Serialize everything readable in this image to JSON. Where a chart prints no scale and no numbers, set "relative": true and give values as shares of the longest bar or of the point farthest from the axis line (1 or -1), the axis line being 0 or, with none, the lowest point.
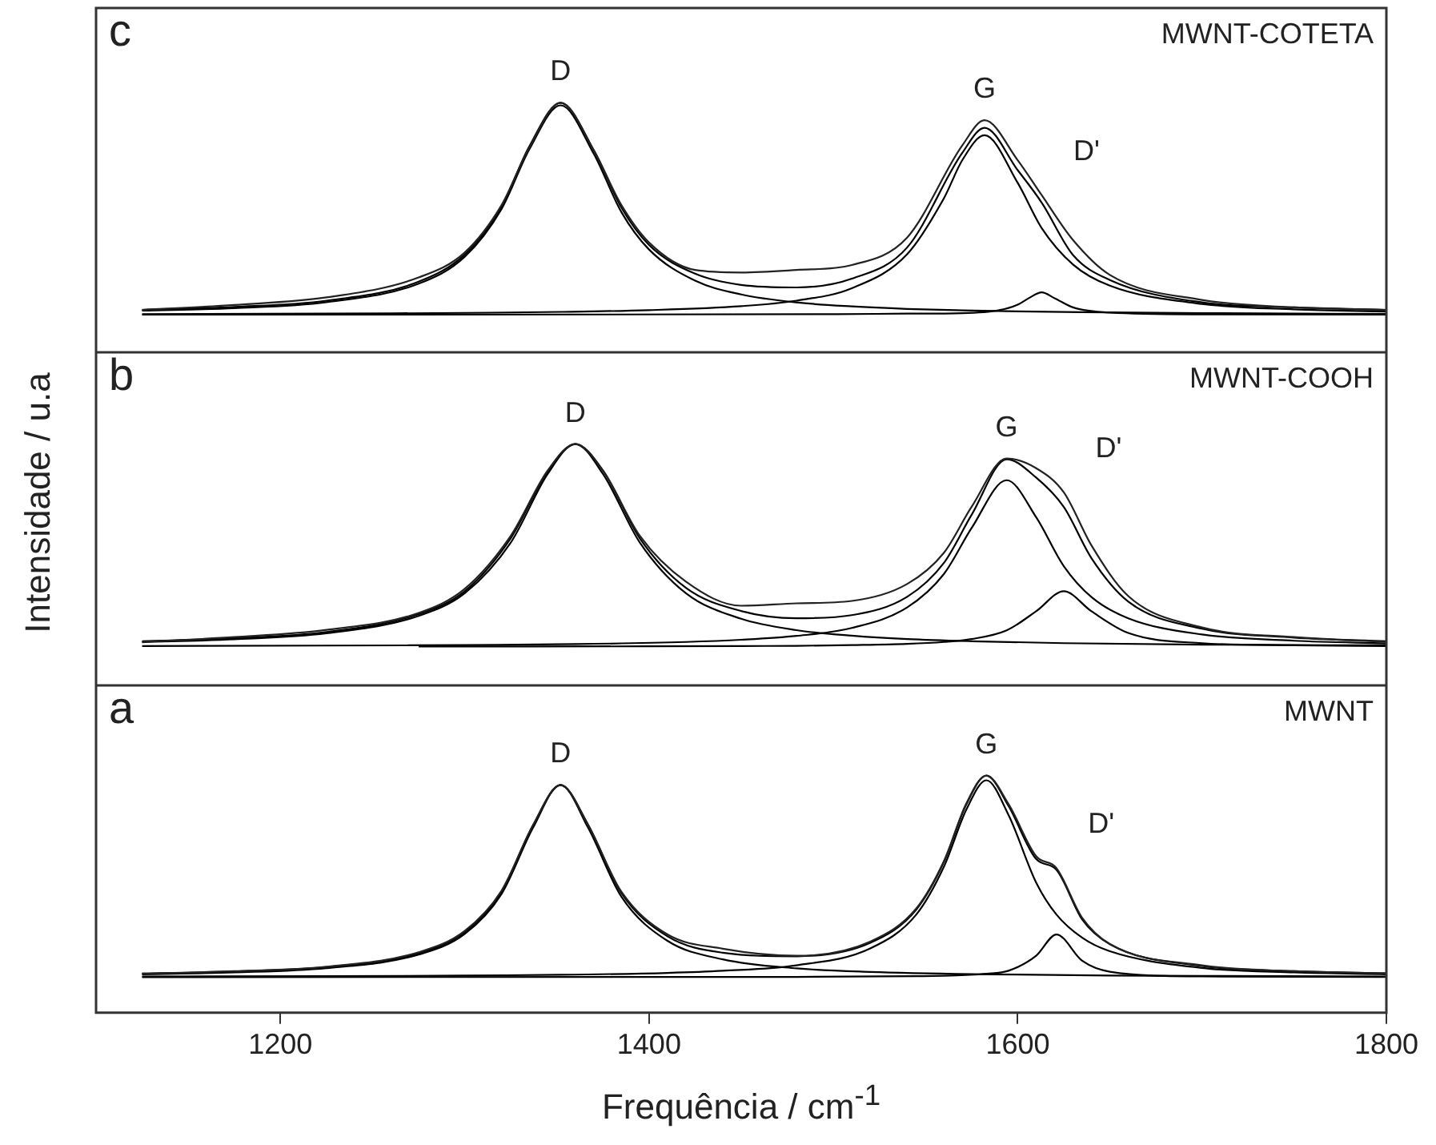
{
  "chart_data": [
    {
      "type": "line",
      "relative": true,
      "xlim": [
        1100,
        1800
      ],
      "tick_labels": false,
      "legend": false,
      "grid": false,
      "marker": "none",
      "annotations": [
        "c",
        "MWNT-COTETA",
        "D",
        "G",
        "D'"
      ],
      "x": [
        1125,
        1175,
        1225,
        1275,
        1300,
        1320,
        1335,
        1352,
        1370,
        1385,
        1400,
        1425,
        1450,
        1480,
        1510,
        1540,
        1570,
        1582,
        1600,
        1613,
        1630,
        1650,
        1700,
        1750,
        1800
      ],
      "series": [
        {
          "color": "#222222",
          "values": [
            0.17,
            0.19,
            0.22,
            0.3,
            0.4,
            0.59,
            0.82,
            1.0,
            0.81,
            0.59,
            0.44,
            0.33,
            0.32,
            0.33,
            0.35,
            0.46,
            0.83,
            0.93,
            0.77,
            0.63,
            0.45,
            0.31,
            0.21,
            0.18,
            0.17
          ]
        },
        {
          "color": "#000000",
          "values": [
            0.17,
            0.182,
            0.207,
            0.283,
            0.392,
            0.585,
            0.825,
            1.0,
            0.81,
            0.58,
            0.43,
            0.315,
            0.27,
            0.26,
            0.295,
            0.42,
            0.8,
            0.9,
            0.73,
            0.6,
            0.39,
            0.29,
            0.2,
            0.18,
            0.17
          ]
        },
        {
          "color": "#000000",
          "x": [
            1125,
            1175,
            1225,
            1275,
            1300,
            1320,
            1335,
            1352,
            1370,
            1385,
            1400,
            1425,
            1450,
            1480,
            1510,
            1540,
            1570,
            1600,
            1650,
            1700,
            1800
          ],
          "values": [
            0.167,
            0.177,
            0.201,
            0.275,
            0.383,
            0.575,
            0.813,
            0.99,
            0.796,
            0.562,
            0.412,
            0.287,
            0.232,
            0.2,
            0.184,
            0.174,
            0.168,
            0.164,
            0.16,
            0.157,
            0.154
          ]
        },
        {
          "color": "#000000",
          "x": [
            1125,
            1225,
            1300,
            1352,
            1400,
            1450,
            1480,
            1510,
            1540,
            1560,
            1570,
            1582,
            1600,
            1613,
            1630,
            1650,
            1700,
            1750,
            1800
          ],
          "values": [
            0.153,
            0.155,
            0.158,
            0.162,
            0.169,
            0.185,
            0.207,
            0.257,
            0.393,
            0.618,
            0.771,
            0.87,
            0.679,
            0.498,
            0.352,
            0.267,
            0.194,
            0.172,
            0.163
          ]
        },
        {
          "color": "#000000",
          "x": [
            1125,
            1500,
            1540,
            1570,
            1590,
            1600,
            1606,
            1613,
            1620,
            1630,
            1650,
            1700,
            1800
          ],
          "values": [
            0.151,
            0.153,
            0.155,
            0.157,
            0.169,
            0.191,
            0.217,
            0.24,
            0.217,
            0.18,
            0.159,
            0.152,
            0.151
          ]
        }
      ]
    },
    {
      "type": "line",
      "relative": true,
      "xlim": [
        1100,
        1800
      ],
      "tick_labels": false,
      "legend": false,
      "grid": false,
      "marker": "none",
      "ylabel": "Intensidade / u.a",
      "annotations": [
        "b",
        "MWNT-COOH",
        "D",
        "G",
        "D'"
      ],
      "x": [
        1125,
        1175,
        1225,
        1275,
        1300,
        1325,
        1345,
        1360,
        1375,
        1395,
        1420,
        1450,
        1480,
        1510,
        1540,
        1560,
        1575,
        1594,
        1610,
        1625,
        1640,
        1660,
        1700,
        1750,
        1800
      ],
      "series": [
        {
          "color": "#222222",
          "values": [
            0.18,
            0.2,
            0.23,
            0.3,
            0.4,
            0.62,
            0.89,
            1.0,
            0.89,
            0.62,
            0.43,
            0.33,
            0.34,
            0.35,
            0.42,
            0.55,
            0.74,
            0.94,
            0.9,
            0.8,
            0.58,
            0.37,
            0.24,
            0.2,
            0.18
          ]
        },
        {
          "color": "#000000",
          "values": [
            0.183,
            0.195,
            0.221,
            0.295,
            0.39,
            0.61,
            0.887,
            1.0,
            0.89,
            0.609,
            0.404,
            0.308,
            0.278,
            0.291,
            0.367,
            0.508,
            0.707,
            0.937,
            0.861,
            0.739,
            0.527,
            0.347,
            0.235,
            0.198,
            0.183
          ]
        },
        {
          "color": "#000000",
          "x": [
            1125,
            1175,
            1225,
            1275,
            1300,
            1325,
            1345,
            1360,
            1375,
            1395,
            1420,
            1450,
            1480,
            1510,
            1540,
            1575,
            1625,
            1700,
            1800
          ],
          "values": [
            0.179,
            0.191,
            0.216,
            0.288,
            0.382,
            0.592,
            0.876,
            1.0,
            0.876,
            0.592,
            0.382,
            0.276,
            0.229,
            0.206,
            0.192,
            0.183,
            0.175,
            0.169,
            0.166
          ]
        },
        {
          "color": "#000000",
          "x": [
            1125,
            1225,
            1300,
            1360,
            1420,
            1450,
            1480,
            1510,
            1540,
            1560,
            1575,
            1594,
            1610,
            1625,
            1640,
            1660,
            1700,
            1750,
            1800
          ],
          "values": [
            0.163,
            0.165,
            0.167,
            0.171,
            0.18,
            0.189,
            0.205,
            0.238,
            0.323,
            0.462,
            0.652,
            0.85,
            0.697,
            0.494,
            0.366,
            0.278,
            0.211,
            0.185,
            0.174
          ]
        },
        {
          "color": "#000000",
          "x": [
            1275,
            1400,
            1450,
            1480,
            1510,
            1540,
            1560,
            1575,
            1594,
            1610,
            1625,
            1640,
            1660,
            1700,
            1750,
            1800
          ],
          "values": [
            0.161,
            0.162,
            0.163,
            0.164,
            0.167,
            0.172,
            0.18,
            0.192,
            0.228,
            0.307,
            0.39,
            0.307,
            0.217,
            0.175,
            0.166,
            0.163
          ]
        }
      ]
    },
    {
      "type": "line",
      "relative": true,
      "xlim": [
        1100,
        1800
      ],
      "xticks": [
        1200,
        1400,
        1600,
        1800
      ],
      "tick_labels": "x",
      "legend": false,
      "grid": false,
      "marker": "none",
      "xlabel": "Frequência / cm$^{-1}$",
      "annotations": [
        "a",
        "MWNT",
        "D",
        "G",
        "D'"
      ],
      "x": [
        1125,
        1175,
        1225,
        1275,
        1300,
        1320,
        1337,
        1352,
        1367,
        1385,
        1410,
        1440,
        1480,
        1520,
        1545,
        1560,
        1572,
        1583,
        1595,
        1610,
        1621,
        1635,
        1650,
        1700,
        1750,
        1800
      ],
      "series": [
        {
          "color": "#222222",
          "values": [
            0.165,
            0.175,
            0.194,
            0.255,
            0.345,
            0.515,
            0.79,
            0.96,
            0.79,
            0.51,
            0.33,
            0.27,
            0.24,
            0.3,
            0.44,
            0.64,
            0.88,
            1.0,
            0.88,
            0.66,
            0.61,
            0.4,
            0.29,
            0.2,
            0.175,
            0.166
          ]
        },
        {
          "color": "#000000",
          "values": [
            0.165,
            0.174,
            0.192,
            0.251,
            0.34,
            0.51,
            0.789,
            0.96,
            0.792,
            0.504,
            0.322,
            0.253,
            0.238,
            0.295,
            0.435,
            0.636,
            0.876,
            1.0,
            0.872,
            0.648,
            0.603,
            0.393,
            0.289,
            0.197,
            0.175,
            0.166
          ]
        },
        {
          "color": "#000000",
          "x": [
            1125,
            1175,
            1225,
            1275,
            1300,
            1320,
            1337,
            1352,
            1367,
            1385,
            1410,
            1440,
            1480,
            1520,
            1583,
            1650,
            1700,
            1800
          ],
          "values": [
            0.162,
            0.17,
            0.188,
            0.245,
            0.332,
            0.501,
            0.779,
            0.96,
            0.779,
            0.489,
            0.303,
            0.225,
            0.187,
            0.172,
            0.162,
            0.157,
            0.155,
            0.153
          ]
        },
        {
          "color": "#000000",
          "x": [
            1125,
            1225,
            1300,
            1352,
            1410,
            1440,
            1480,
            1520,
            1545,
            1560,
            1572,
            1583,
            1595,
            1610,
            1621,
            1635,
            1650,
            1700,
            1750,
            1800
          ],
          "values": [
            0.153,
            0.154,
            0.157,
            0.16,
            0.168,
            0.177,
            0.2,
            0.271,
            0.414,
            0.616,
            0.854,
            0.98,
            0.834,
            0.549,
            0.414,
            0.316,
            0.259,
            0.189,
            0.17,
            0.162
          ]
        },
        {
          "color": "#000000",
          "x": [
            1125,
            1480,
            1545,
            1560,
            1572,
            1583,
            1595,
            1610,
            1621,
            1635,
            1650,
            1700,
            1800
          ],
          "values": [
            0.15,
            0.151,
            0.154,
            0.156,
            0.159,
            0.164,
            0.177,
            0.24,
            0.33,
            0.219,
            0.173,
            0.153,
            0.151
          ]
        }
      ]
    }
  ]
}
